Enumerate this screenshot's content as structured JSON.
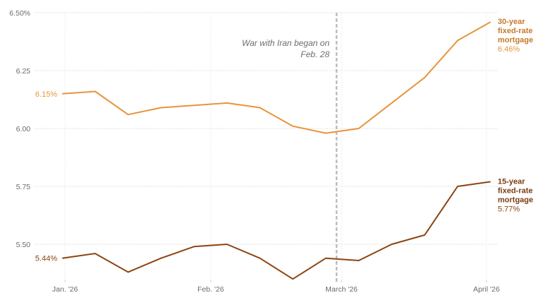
{
  "chart_data": {
    "type": "line",
    "title": "",
    "xlabel": "",
    "ylabel": "",
    "ylim": [
      5.35,
      6.5
    ],
    "grid": true,
    "y_ticks": [
      {
        "value": 6.5,
        "label": "6.50%"
      },
      {
        "value": 6.25,
        "label": "6.25"
      },
      {
        "value": 6.0,
        "label": "6.00"
      },
      {
        "value": 5.75,
        "label": "5.75"
      },
      {
        "value": 5.5,
        "label": "5.50"
      }
    ],
    "x_ticks": [
      {
        "index": 0,
        "label": "Jan. '26"
      },
      {
        "index": 4.5,
        "label": "Feb. '26"
      },
      {
        "index": 8.5,
        "label": "March '26"
      },
      {
        "index": 13,
        "label": "April '26"
      }
    ],
    "x": [
      "Jan 1",
      "Jan 8",
      "Jan 15",
      "Jan 22",
      "Jan 29",
      "Feb 5",
      "Feb 12",
      "Feb 19",
      "Feb 26",
      "Mar 5",
      "Mar 12",
      "Mar 19",
      "Mar 26",
      "Apr 2"
    ],
    "series": [
      {
        "name": "30-year fixed-rate mortgage",
        "label_lines": [
          "30-year",
          "fixed-rate",
          "mortgage"
        ],
        "start_label": "6.15%",
        "end_label": "6.46%",
        "color": "#e8943a",
        "values": [
          6.15,
          6.16,
          6.06,
          6.09,
          6.1,
          6.11,
          6.09,
          6.01,
          5.98,
          6.0,
          6.11,
          6.22,
          6.38,
          6.46
        ]
      },
      {
        "name": "15-year fixed-rate mortgage",
        "label_lines": [
          "15-year",
          "fixed-rate",
          "mortgage"
        ],
        "start_label": "5.44%",
        "end_label": "5.77%",
        "color": "#8b4513",
        "values": [
          5.44,
          5.46,
          5.38,
          5.44,
          5.49,
          5.5,
          5.44,
          5.35,
          5.44,
          5.43,
          5.5,
          5.54,
          5.75,
          5.77
        ]
      }
    ],
    "annotations": [
      {
        "text_lines": [
          "War with Iran began on",
          "Feb. 28"
        ],
        "type": "vertical-dashed-line",
        "at": "Feb. 28"
      }
    ]
  }
}
